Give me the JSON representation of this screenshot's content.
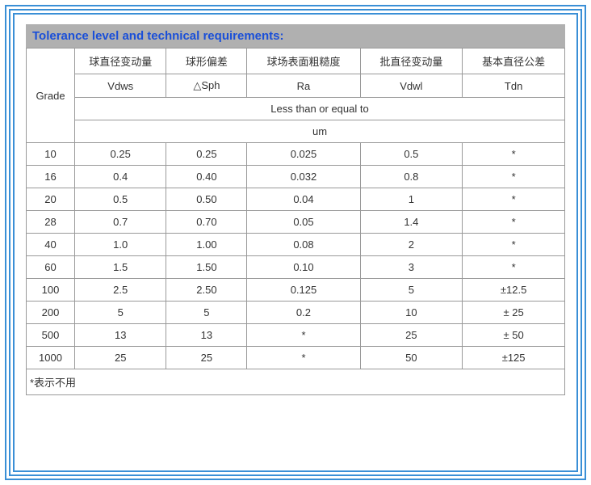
{
  "title": "Tolerance level and technical requirements:",
  "colors": {
    "frame_border": "#3a8fd6",
    "header_bg": "#b0b0b0",
    "header_text": "#1a4fd8",
    "cell_border": "#999999",
    "text": "#333333",
    "background": "#ffffff"
  },
  "table": {
    "row_header_label": "Grade",
    "group_headers_cn": [
      "球直径变动量",
      "球形偏差",
      "球场表面粗糙度",
      "批直径变动量",
      "基本直径公差"
    ],
    "symbol_headers": [
      "Vdws",
      "△Sph",
      "Ra",
      "Vdwl",
      "Tdn"
    ],
    "span_label": "Less than or equal to",
    "unit_label": "um",
    "rows": [
      {
        "grade": "10",
        "vdws": "0.25",
        "sph": "0.25",
        "ra": "0.025",
        "vdwl": "0.5",
        "tdn": "*"
      },
      {
        "grade": "16",
        "vdws": "0.4",
        "sph": "0.40",
        "ra": "0.032",
        "vdwl": "0.8",
        "tdn": "*"
      },
      {
        "grade": "20",
        "vdws": "0.5",
        "sph": "0.50",
        "ra": "0.04",
        "vdwl": "1",
        "tdn": "*"
      },
      {
        "grade": "28",
        "vdws": "0.7",
        "sph": "0.70",
        "ra": "0.05",
        "vdwl": "1.4",
        "tdn": "*"
      },
      {
        "grade": "40",
        "vdws": "1.0",
        "sph": "1.00",
        "ra": "0.08",
        "vdwl": "2",
        "tdn": "*"
      },
      {
        "grade": "60",
        "vdws": "1.5",
        "sph": "1.50",
        "ra": "0.10",
        "vdwl": "3",
        "tdn": "*"
      },
      {
        "grade": "100",
        "vdws": "2.5",
        "sph": "2.50",
        "ra": "0.125",
        "vdwl": "5",
        "tdn": "±12.5"
      },
      {
        "grade": "200",
        "vdws": "5",
        "sph": "5",
        "ra": "0.2",
        "vdwl": "10",
        "tdn": "± 25"
      },
      {
        "grade": "500",
        "vdws": "13",
        "sph": "13",
        "ra": "*",
        "vdwl": "25",
        "tdn": "± 50"
      },
      {
        "grade": "1000",
        "vdws": "25",
        "sph": "25",
        "ra": "*",
        "vdwl": "50",
        "tdn": "±125"
      }
    ],
    "footnote": "*表示不用",
    "col_widths_pct": [
      9,
      17,
      15,
      21,
      19,
      19
    ]
  }
}
